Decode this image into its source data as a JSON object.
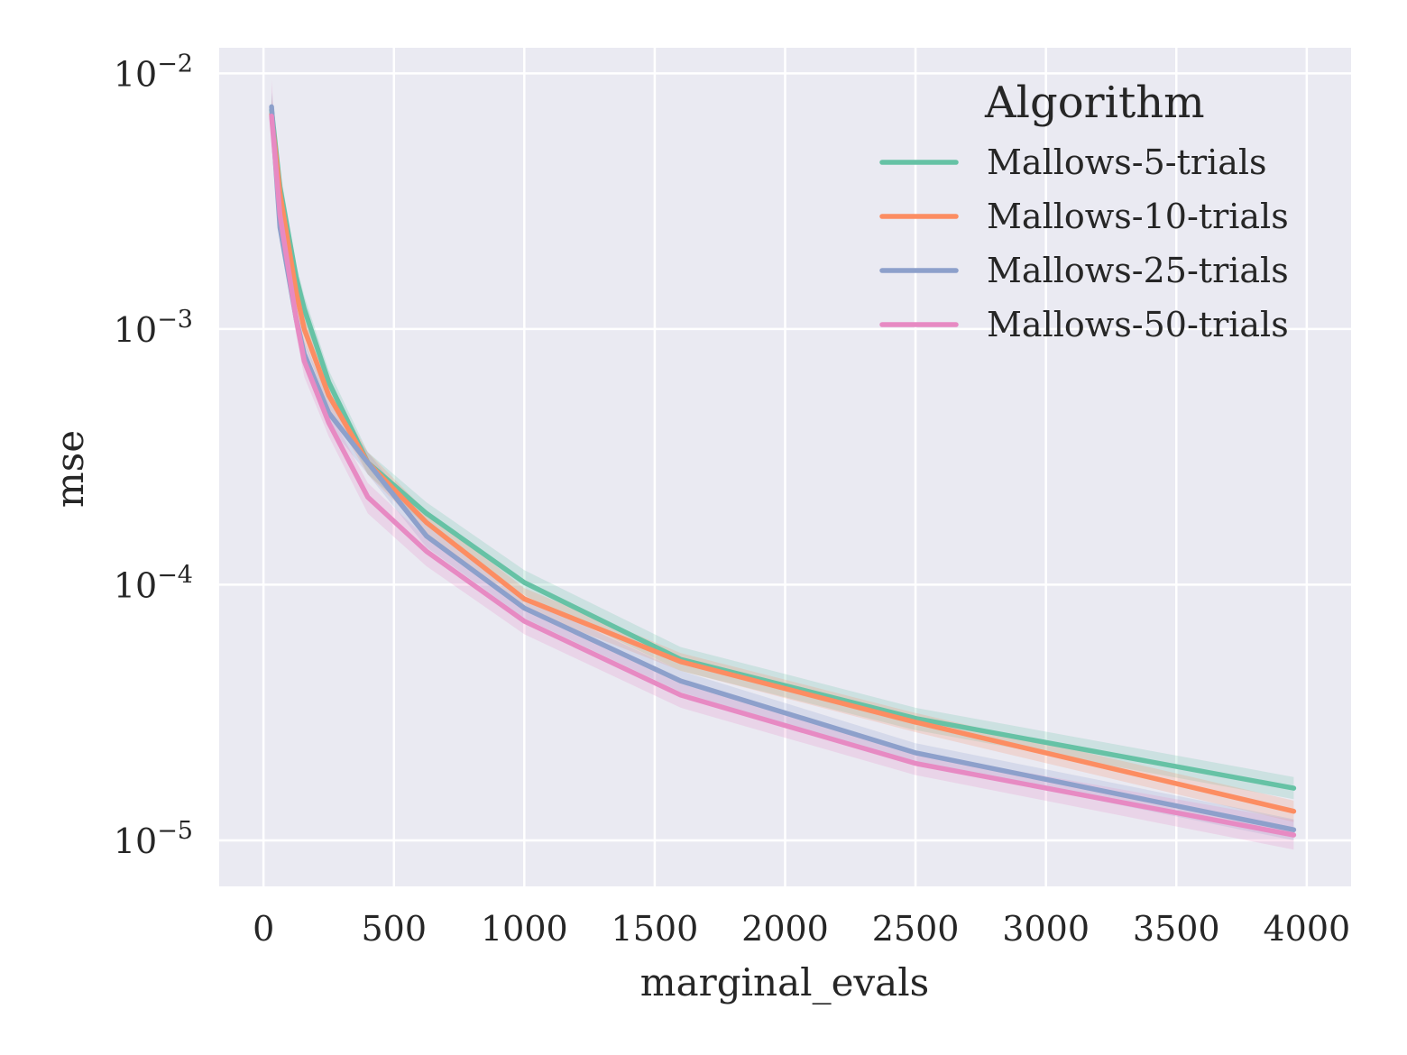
{
  "chart_data": {
    "type": "line",
    "title": "",
    "xlabel": "marginal_evals",
    "ylabel": "mse",
    "xlim": [
      -170,
      4170
    ],
    "ylim_log10": [
      -5.18,
      -1.9
    ],
    "yscale": "log",
    "x_ticks": [
      0,
      500,
      1000,
      1500,
      2000,
      2500,
      3000,
      3500,
      4000
    ],
    "x_tick_labels": [
      "0",
      "500",
      "1000",
      "1500",
      "2000",
      "2500",
      "3000",
      "3500",
      "4000"
    ],
    "y_ticks_log10": [
      -2,
      -3,
      -4,
      -5
    ],
    "y_tick_labels": [
      {
        "base": "10",
        "exp": "−2"
      },
      {
        "base": "10",
        "exp": "−3"
      },
      {
        "base": "10",
        "exp": "−4"
      },
      {
        "base": "10",
        "exp": "−5"
      }
    ],
    "grid": true,
    "legend": {
      "title": "Algorithm",
      "position": "top-right"
    },
    "x": [
      31,
      63,
      125,
      156,
      250,
      400,
      625,
      1000,
      1600,
      2500,
      3950
    ],
    "series": [
      {
        "name": "Mallows-5-trials",
        "color": "#66c2a5",
        "values": [
          0.0072,
          0.0036,
          0.0016,
          0.0012,
          0.00062,
          0.0003,
          0.00019,
          0.000102,
          5.1e-05,
          3e-05,
          1.6e-05
        ],
        "lower": [
          0.0062,
          0.0031,
          0.0014,
          0.00105,
          0.00055,
          0.00027,
          0.00017,
          9.1e-05,
          4.6e-05,
          2.7e-05,
          1.45e-05
        ],
        "upper": [
          0.0084,
          0.0042,
          0.0018,
          0.00135,
          0.00069,
          0.00033,
          0.00021,
          0.000114,
          5.7e-05,
          3.3e-05,
          1.77e-05
        ]
      },
      {
        "name": "Mallows-10-trials",
        "color": "#fc8d62",
        "values": [
          0.0069,
          0.0034,
          0.0014,
          0.001,
          0.00055,
          0.0003,
          0.000175,
          8.8e-05,
          5e-05,
          2.9e-05,
          1.3e-05
        ],
        "lower": [
          0.006,
          0.0029,
          0.0012,
          0.00088,
          0.00049,
          0.00027,
          0.000158,
          8e-05,
          4.6e-05,
          2.65e-05,
          1.18e-05
        ],
        "upper": [
          0.008,
          0.0039,
          0.0016,
          0.00115,
          0.00061,
          0.00033,
          0.000193,
          9.7e-05,
          5.4e-05,
          3.15e-05,
          1.43e-05
        ]
      },
      {
        "name": "Mallows-25-trials",
        "color": "#8da0cb",
        "values": [
          0.0074,
          0.0025,
          0.0011,
          0.0008,
          0.00047,
          0.0003,
          0.000155,
          8.1e-05,
          4.2e-05,
          2.2e-05,
          1.1e-05
        ],
        "lower": [
          0.0064,
          0.0022,
          0.00097,
          0.00071,
          0.00042,
          0.00027,
          0.00014,
          7.4e-05,
          3.8e-05,
          2e-05,
          1e-05
        ],
        "upper": [
          0.0085,
          0.0029,
          0.00125,
          0.0009,
          0.00053,
          0.00033,
          0.00017,
          8.9e-05,
          4.6e-05,
          2.4e-05,
          1.21e-05
        ]
      },
      {
        "name": "Mallows-50-trials",
        "color": "#e78ac3",
        "values": [
          0.0068,
          0.0028,
          0.0011,
          0.00075,
          0.00043,
          0.00022,
          0.000135,
          7.2e-05,
          3.7e-05,
          2e-05,
          1.05e-05
        ],
        "lower": [
          0.0056,
          0.0024,
          0.00095,
          0.00065,
          0.00038,
          0.00019,
          0.000118,
          6.4e-05,
          3.3e-05,
          1.8e-05,
          9.2e-06
        ],
        "upper": [
          0.0094,
          0.0033,
          0.00125,
          0.00085,
          0.00048,
          0.00025,
          0.000152,
          8e-05,
          4.1e-05,
          2.2e-05,
          1.2e-05
        ]
      }
    ]
  }
}
